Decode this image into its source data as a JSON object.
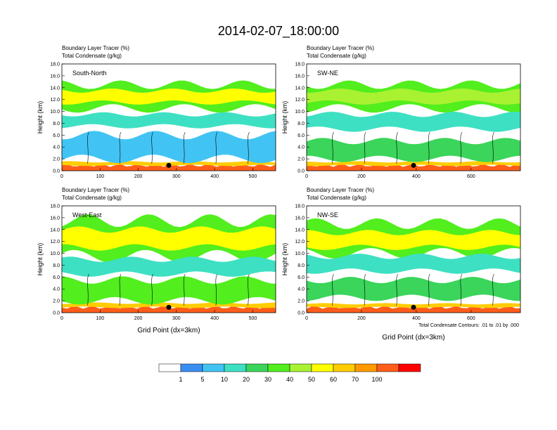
{
  "title": "2014-02-07_18:00:00",
  "colors": {
    "scale": [
      "#ffffff",
      "#3a8ef2",
      "#41c4f3",
      "#3ee0c3",
      "#3ad55a",
      "#52ee1d",
      "#a9f232",
      "#ffff00",
      "#ffcc00",
      "#ff9900",
      "#ff5d19",
      "#ff0000"
    ],
    "contour": "#000000",
    "marker": "#000000"
  },
  "colorbar": {
    "labels": [
      "1",
      "5",
      "10",
      "20",
      "30",
      "40",
      "50",
      "60",
      "70",
      "100"
    ]
  },
  "footnote": "Total Condensate Contours: .01 to .01 by .000",
  "chart_data": [
    {
      "type": "heatmap",
      "subtitle_line1": "Boundary Layer Tracer    (%)",
      "subtitle_line2": "Total Condensate    (g/kg)",
      "panel_label": "South-North",
      "ylabel": "Height (km)",
      "xlabel": "",
      "xlim": [
        0,
        560
      ],
      "ylim": [
        0,
        18
      ],
      "xticks": [
        "0",
        "100",
        "200",
        "300",
        "400",
        "500"
      ],
      "yticks": [
        "0.0",
        "2.0",
        "4.0",
        "6.0",
        "8.0",
        "10.0",
        "12.0",
        "14.0",
        "16.0",
        "18.0"
      ],
      "marker_x": 280,
      "bands": [
        {
          "z0": 0,
          "z1": 0.9,
          "value": 100
        },
        {
          "z0": 0.9,
          "z1": 1.5,
          "value": 60
        },
        {
          "z0": 10.5,
          "z1": 14.5,
          "value": 30
        },
        {
          "z0": 11.5,
          "z1": 13.5,
          "value": 50
        },
        {
          "z0": 7.5,
          "z1": 9.5,
          "value": 10
        },
        {
          "z0": 2.0,
          "z1": 6.0,
          "value": 5
        }
      ]
    },
    {
      "type": "heatmap",
      "subtitle_line1": "Boundary Layer Tracer    (%)",
      "subtitle_line2": "Total Condensate    (g/kg)",
      "panel_label": "SW-NE",
      "ylabel": "Height (km)",
      "xlabel": "",
      "xlim": [
        0,
        780
      ],
      "ylim": [
        0,
        18
      ],
      "xticks": [
        "0",
        "200",
        "400",
        "600"
      ],
      "yticks": [
        "0.0",
        "2.0",
        "4.0",
        "6.0",
        "8.0",
        "10.0",
        "12.0",
        "14.0",
        "16.0",
        "18.0"
      ],
      "marker_x": 390,
      "bands": [
        {
          "z0": 0,
          "z1": 0.9,
          "value": 100
        },
        {
          "z0": 0.9,
          "z1": 1.5,
          "value": 60
        },
        {
          "z0": 10.5,
          "z1": 14.5,
          "value": 30
        },
        {
          "z0": 11.5,
          "z1": 13.5,
          "value": 40
        },
        {
          "z0": 7.0,
          "z1": 9.5,
          "value": 10
        },
        {
          "z0": 2.0,
          "z1": 5.0,
          "value": 20
        }
      ]
    },
    {
      "type": "heatmap",
      "subtitle_line1": "Boundary Layer Tracer    (%)",
      "subtitle_line2": "Total Condensate    (g/kg)",
      "panel_label": "West-East",
      "ylabel": "Height (km)",
      "xlabel": "Grid Point (dx=3km)",
      "xlim": [
        0,
        560
      ],
      "ylim": [
        0,
        18
      ],
      "xticks": [
        "0",
        "100",
        "200",
        "300",
        "400",
        "500"
      ],
      "yticks": [
        "0.0",
        "2.0",
        "4.0",
        "6.0",
        "8.0",
        "10.0",
        "12.0",
        "14.0",
        "16.0",
        "18.0"
      ],
      "marker_x": 280,
      "bands": [
        {
          "z0": 0,
          "z1": 0.9,
          "value": 100
        },
        {
          "z0": 0.9,
          "z1": 1.6,
          "value": 60
        },
        {
          "z0": 9.5,
          "z1": 15.5,
          "value": 30
        },
        {
          "z0": 11.0,
          "z1": 14.0,
          "value": 50
        },
        {
          "z0": 6.5,
          "z1": 9.0,
          "value": 10
        },
        {
          "z0": 2.0,
          "z1": 5.5,
          "value": 30
        }
      ]
    },
    {
      "type": "heatmap",
      "subtitle_line1": "Boundary Layer Tracer    (%)",
      "subtitle_line2": "Total Condensate    (g/kg)",
      "panel_label": "NW-SE",
      "ylabel": "Height (km)",
      "xlabel": "Grid Point (dx=3km)",
      "xlim": [
        0,
        780
      ],
      "ylim": [
        0,
        18
      ],
      "xticks": [
        "0",
        "200",
        "400",
        "600"
      ],
      "yticks": [
        "0.0",
        "2.0",
        "4.0",
        "6.0",
        "8.0",
        "10.0",
        "12.0",
        "14.0",
        "16.0",
        "18.0"
      ],
      "marker_x": 390,
      "bands": [
        {
          "z0": 0,
          "z1": 0.9,
          "value": 100
        },
        {
          "z0": 0.9,
          "z1": 1.5,
          "value": 60
        },
        {
          "z0": 10.0,
          "z1": 15.0,
          "value": 30
        },
        {
          "z0": 11.0,
          "z1": 13.5,
          "value": 50
        },
        {
          "z0": 7.0,
          "z1": 9.5,
          "value": 10
        },
        {
          "z0": 2.5,
          "z1": 5.5,
          "value": 20
        }
      ]
    }
  ]
}
